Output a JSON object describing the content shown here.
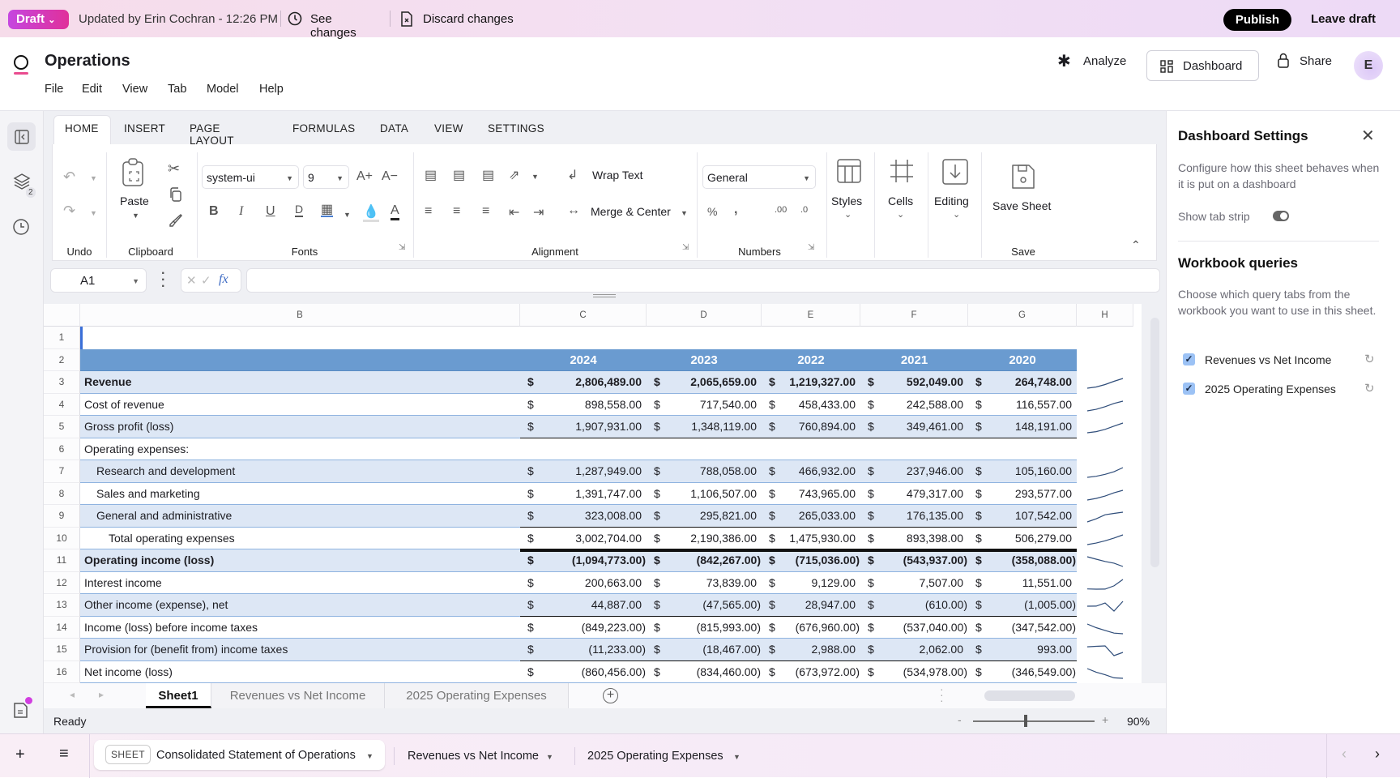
{
  "banner": {
    "draft_label": "Draft",
    "updated_text": "Updated by Erin Cochran - 12:26 PM",
    "see_changes": "See changes",
    "discard_changes": "Discard changes",
    "publish": "Publish",
    "leave_draft": "Leave draft"
  },
  "header": {
    "title": "Operations",
    "menu": [
      "File",
      "Edit",
      "View",
      "Tab",
      "Model",
      "Help"
    ],
    "analyze": "Analyze",
    "dashboard": "Dashboard",
    "share": "Share",
    "avatar_initial": "E"
  },
  "rail": {
    "layers_badge": "2"
  },
  "ribbon": {
    "tabs": [
      "HOME",
      "INSERT",
      "PAGE LAYOUT",
      "FORMULAS",
      "DATA",
      "VIEW",
      "SETTINGS"
    ],
    "active_tab": "HOME",
    "groups": {
      "undo": "Undo",
      "clipboard": "Clipboard",
      "fonts": "Fonts",
      "alignment": "Alignment",
      "numbers": "Numbers",
      "save": "Save"
    },
    "paste": "Paste",
    "font_family": "system-ui",
    "font_size": "9",
    "wrap_text": "Wrap Text",
    "merge_center": "Merge & Center",
    "number_format": "General",
    "styles": "Styles",
    "cells": "Cells",
    "editing": "Editing",
    "save_sheet": "Save Sheet"
  },
  "formula_bar": {
    "name_box": "A1",
    "fx": "fx",
    "value": ""
  },
  "grid": {
    "columns": [
      "B",
      "C",
      "D",
      "E",
      "F",
      "G",
      "H"
    ],
    "years": [
      "2024",
      "2023",
      "2022",
      "2021",
      "2020"
    ],
    "accent_header": "#6a9bd0",
    "band_fill": "#dde7f5",
    "rows": [
      {
        "n": "1",
        "label": "",
        "values": []
      },
      {
        "n": "2",
        "label": "",
        "values": [],
        "header": true
      },
      {
        "n": "3",
        "label": "Revenue",
        "bold": true,
        "values": [
          "2,806,489.00",
          "2,065,659.00",
          "1,219,327.00",
          "592,049.00",
          "264,748.00"
        ]
      },
      {
        "n": "4",
        "label": "Cost of revenue",
        "values": [
          "898,558.00",
          "717,540.00",
          "458,433.00",
          "242,588.00",
          "116,557.00"
        ]
      },
      {
        "n": "5",
        "label": "Gross profit (loss)",
        "values": [
          "1,907,931.00",
          "1,348,119.00",
          "760,894.00",
          "349,461.00",
          "148,191.00"
        ]
      },
      {
        "n": "6",
        "label": "Operating expenses:",
        "values": []
      },
      {
        "n": "7",
        "label": "Research and development",
        "indent": 1,
        "values": [
          "1,287,949.00",
          "788,058.00",
          "466,932.00",
          "237,946.00",
          "105,160.00"
        ]
      },
      {
        "n": "8",
        "label": "Sales and marketing",
        "indent": 1,
        "values": [
          "1,391,747.00",
          "1,106,507.00",
          "743,965.00",
          "479,317.00",
          "293,577.00"
        ]
      },
      {
        "n": "9",
        "label": "General and administrative",
        "indent": 1,
        "values": [
          "323,008.00",
          "295,821.00",
          "265,033.00",
          "176,135.00",
          "107,542.00"
        ]
      },
      {
        "n": "10",
        "label": "Total operating expenses",
        "indent": 2,
        "values": [
          "3,002,704.00",
          "2,190,386.00",
          "1,475,930.00",
          "893,398.00",
          "506,279.00"
        ]
      },
      {
        "n": "11",
        "label": "Operating income (loss)",
        "bold": true,
        "values": [
          "(1,094,773.00)",
          "(842,267.00)",
          "(715,036.00)",
          "(543,937.00)",
          "(358,088.00)"
        ]
      },
      {
        "n": "12",
        "label": "Interest income",
        "values": [
          "200,663.00",
          "73,839.00",
          "9,129.00",
          "7,507.00",
          "11,551.00"
        ]
      },
      {
        "n": "13",
        "label": "Other income (expense), net",
        "values": [
          "44,887.00",
          "(47,565.00)",
          "28,947.00",
          "(610.00)",
          "(1,005.00)"
        ]
      },
      {
        "n": "14",
        "label": "Income (loss) before income taxes",
        "values": [
          "(849,223.00)",
          "(815,993.00)",
          "(676,960.00)",
          "(537,040.00)",
          "(347,542.00)"
        ]
      },
      {
        "n": "15",
        "label": "Provision for (benefit from) income taxes",
        "values": [
          "(11,233.00)",
          "(18,467.00)",
          "2,988.00",
          "2,062.00",
          "993.00"
        ]
      },
      {
        "n": "16",
        "label": "Net income (loss)",
        "values": [
          "(860,456.00)",
          "(834,460.00)",
          "(673,972.00)",
          "(534,978.00)",
          "(346,549.00)"
        ]
      }
    ],
    "currency": "$"
  },
  "sheet_tabs": {
    "tabs": [
      "Sheet1",
      "Revenues vs Net Income",
      "2025 Operating Expenses"
    ],
    "active": "Sheet1"
  },
  "status": {
    "text": "Ready",
    "zoom": "90%",
    "zoom_minus": "-",
    "zoom_plus": "+"
  },
  "bottom_bar": {
    "sheet_badge": "SHEET",
    "tabs": [
      "Consolidated Statement of Operations",
      "Revenues vs Net Income",
      "2025 Operating Expenses"
    ]
  },
  "panel": {
    "title": "Dashboard Settings",
    "description": "Configure how this sheet behaves when it is put on a dashboard",
    "show_tab_strip_label": "Show tab strip",
    "show_tab_strip": true,
    "queries_title": "Workbook queries",
    "queries_description": "Choose which query tabs from the workbook you want to use in this sheet.",
    "queries": [
      {
        "label": "Revenues vs Net Income",
        "checked": true
      },
      {
        "label": "2025 Operating Expenses",
        "checked": true
      }
    ]
  }
}
